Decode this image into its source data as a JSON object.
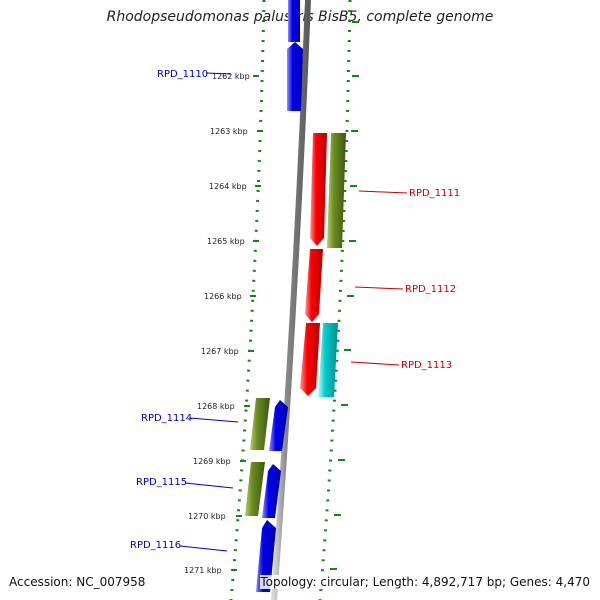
{
  "title": "Rhodopseudomonas palustris BisB5, complete genome",
  "footer": {
    "accession": "Accession: NC_007958",
    "summary": "Topology: circular; Length: 4,892,717 bp; Genes: 4,470"
  },
  "colors": {
    "backbone": "#8a8a8a",
    "dots": "#118811",
    "reverse_label": "#0000cc",
    "forward_label": "#cc0000",
    "blue": "#0000ee",
    "red": "#ff0000",
    "olive": "#6b8e23",
    "cyan": "#00cccc"
  },
  "ticks": [
    {
      "label": "1262 kbp"
    },
    {
      "label": "1263 kbp"
    },
    {
      "label": "1264 kbp"
    },
    {
      "label": "1265 kbp"
    },
    {
      "label": "1266 kbp"
    },
    {
      "label": "1267 kbp"
    },
    {
      "label": "1268 kbp"
    },
    {
      "label": "1269 kbp"
    },
    {
      "label": "1270 kbp"
    },
    {
      "label": "1271 kbp"
    }
  ],
  "gene_labels": [
    {
      "text": "RPD_1110",
      "strand": "reverse"
    },
    {
      "text": "RPD_1111",
      "strand": "forward"
    },
    {
      "text": "RPD_1112",
      "strand": "forward"
    },
    {
      "text": "RPD_1113",
      "strand": "forward"
    },
    {
      "text": "RPD_1114",
      "strand": "reverse"
    },
    {
      "text": "RPD_1115",
      "strand": "reverse"
    },
    {
      "text": "RPD_1116",
      "strand": "reverse"
    }
  ]
}
